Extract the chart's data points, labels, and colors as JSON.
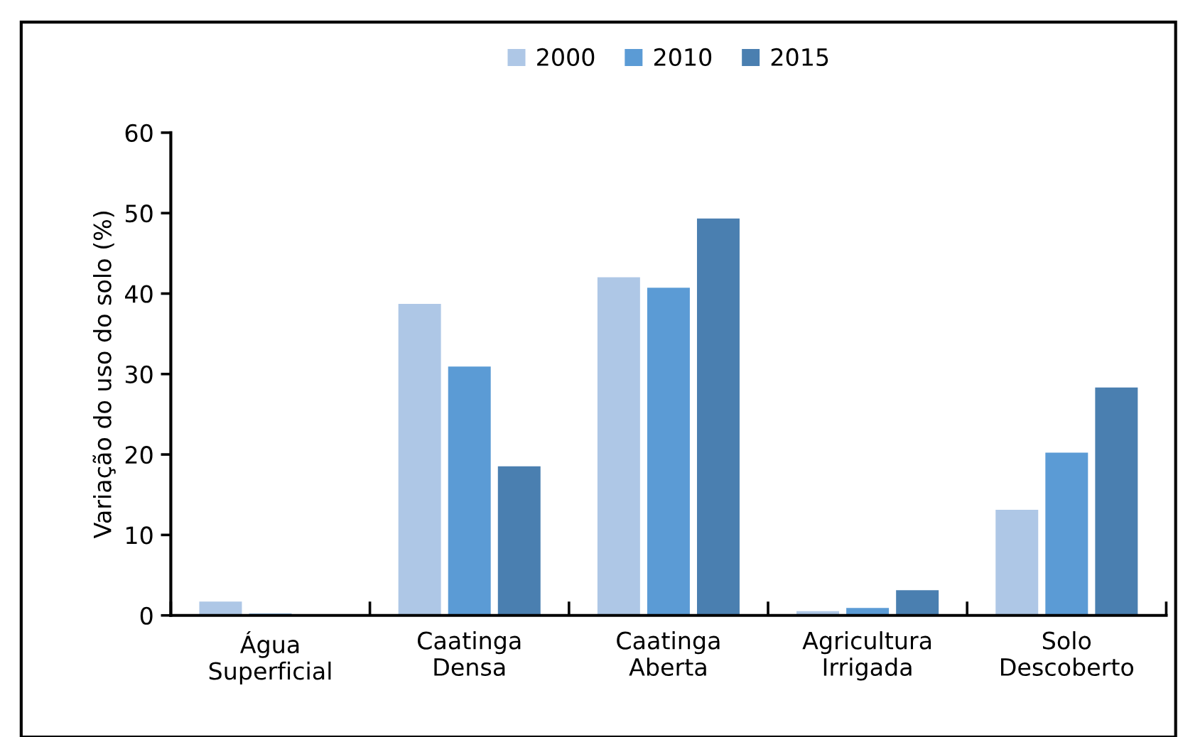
{
  "chart_data": {
    "type": "bar",
    "ylabel": "Variação do uso do solo (%)",
    "categories": [
      "Água\nSuperficial",
      "Caatinga\nDensa",
      "Caatinga\nAberta",
      "Agricultura\nIrrigada",
      "Solo\nDescoberto"
    ],
    "series": [
      {
        "name": "2000",
        "color": "#aec7e6",
        "values": [
          1.8,
          38.8,
          42.1,
          0.6,
          13.2
        ]
      },
      {
        "name": "2010",
        "color": "#5b9bd5",
        "values": [
          0.3,
          31.0,
          40.8,
          1.0,
          20.3
        ]
      },
      {
        "name": "2015",
        "color": "#4a7fb0",
        "values": [
          null,
          18.6,
          49.4,
          3.2,
          28.4
        ]
      }
    ],
    "ylim": [
      0,
      60
    ],
    "yticks": [
      0,
      10,
      20,
      30,
      40,
      50,
      60
    ],
    "grid": false,
    "legend": "top"
  }
}
